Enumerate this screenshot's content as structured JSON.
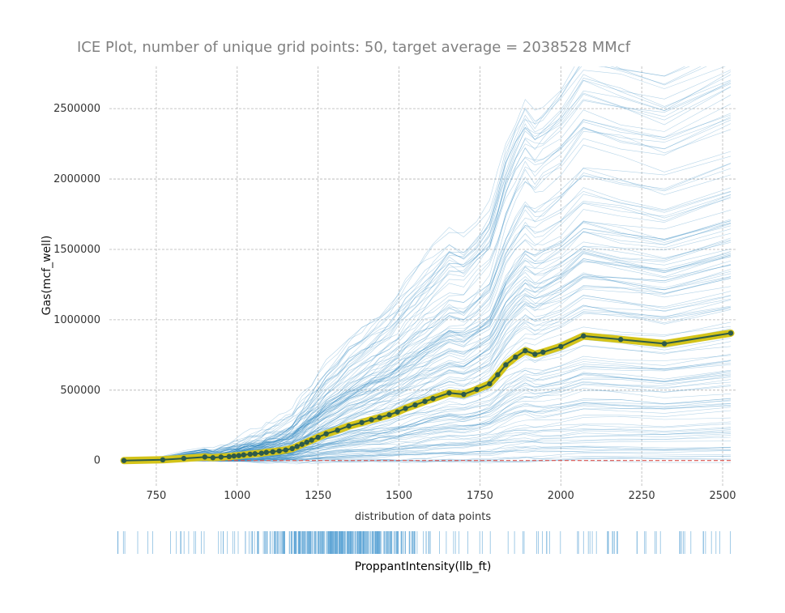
{
  "chart_data": {
    "type": "line",
    "title": "ICE Plot, number of unique grid points: 50, target average = 2038528 MMcf",
    "xlabel": "ProppantIntensity(llb_ft)",
    "ylabel": "Gas(mcf_well)",
    "subplot_label": "distribution of data points",
    "xlim": [
      605,
      2545
    ],
    "ylim": [
      -180000,
      2800000
    ],
    "x_ticks": [
      "750",
      "1000",
      "1250",
      "1500",
      "1750",
      "2000",
      "2250",
      "2500"
    ],
    "y_ticks": [
      "0",
      "500000",
      "1000000",
      "1500000",
      "2000000",
      "2500000"
    ],
    "grid": true,
    "reference_line": {
      "y": 0,
      "color": "#d9534f",
      "style": "dashed"
    },
    "series": [
      {
        "color": "#2d5a4a",
        "band_color": "#d4c419",
        "x": [
          650,
          770,
          835,
          900,
          925,
          950,
          975,
          990,
          1005,
          1020,
          1040,
          1055,
          1075,
          1090,
          1110,
          1130,
          1150,
          1170,
          1185,
          1200,
          1215,
          1230,
          1250,
          1275,
          1310,
          1345,
          1385,
          1415,
          1440,
          1470,
          1495,
          1520,
          1550,
          1580,
          1605,
          1655,
          1700,
          1740,
          1780,
          1805,
          1830,
          1860,
          1890,
          1920,
          1945,
          2000,
          2070,
          2185,
          2320,
          2525
        ],
        "values": [
          0,
          5000,
          15000,
          25000,
          20000,
          25000,
          28000,
          32000,
          35000,
          40000,
          45000,
          48000,
          52000,
          58000,
          62000,
          68000,
          75000,
          85000,
          100000,
          115000,
          130000,
          145000,
          165000,
          190000,
          215000,
          245000,
          270000,
          290000,
          305000,
          325000,
          345000,
          370000,
          395000,
          420000,
          440000,
          480000,
          470000,
          505000,
          545000,
          610000,
          680000,
          735000,
          780000,
          755000,
          770000,
          810000,
          885000,
          860000,
          830000,
          905000
        ]
      }
    ],
    "ice_curves": {
      "color": "#2e86c1",
      "count": 140
    },
    "rug": {
      "color": "#5aa3d4",
      "range": [
        640,
        2540
      ]
    }
  }
}
